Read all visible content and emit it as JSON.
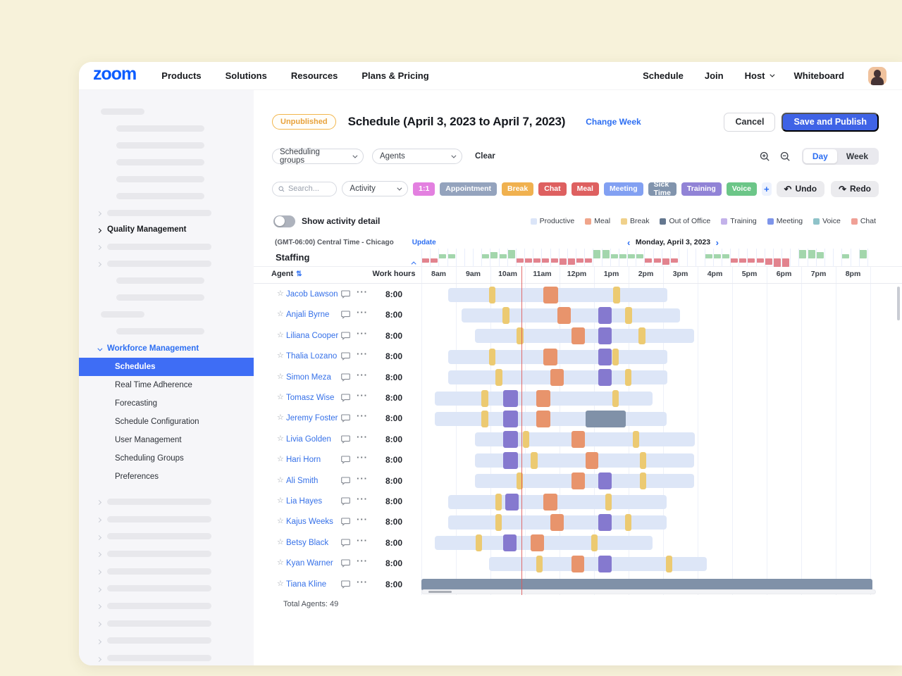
{
  "nav": {
    "logo": "zoom",
    "items": [
      "Products",
      "Solutions",
      "Resources",
      "Plans & Pricing"
    ],
    "right_items": [
      "Schedule",
      "Join",
      "Host",
      "Whiteboard"
    ]
  },
  "sidebar": {
    "quality_label": "Quality Management",
    "workforce_label": "Workforce Management",
    "items": [
      "Schedules",
      "Real Time Adherence",
      "Forecasting",
      "Schedule Configuration",
      "User Management",
      "Scheduling Groups",
      "Preferences"
    ],
    "selected": "Schedules",
    "top_skeleton": [
      "short",
      "ind",
      "ind",
      "ind",
      "ind",
      "ind",
      "chevbar",
      "quality",
      "chevbar",
      "chevbar",
      "ind",
      "ind",
      "short",
      "ind"
    ],
    "bottom_skeleton_count": 10
  },
  "header": {
    "badge": "Unpublished",
    "title": "Schedule (April 3, 2023 to April 7, 2023)",
    "change_week": "Change Week",
    "cancel": "Cancel",
    "save": "Save and Publish"
  },
  "filters": {
    "group_select": "Scheduling groups",
    "agent_select": "Agents",
    "clear": "Clear",
    "day": "Day",
    "week": "Week"
  },
  "activity": {
    "search_placeholder": "Search...",
    "select": "Activity",
    "chips": [
      {
        "label": "1:1",
        "color": "#e380e0"
      },
      {
        "label": "Appointment",
        "color": "#94a3bd"
      },
      {
        "label": "Break",
        "color": "#f0b14f"
      },
      {
        "label": "Chat",
        "color": "#de6060"
      },
      {
        "label": "Meal",
        "color": "#de6060"
      },
      {
        "label": "Meeting",
        "color": "#82a0f2"
      },
      {
        "label": "Sick Time",
        "color": "#8194ad"
      },
      {
        "label": "Training",
        "color": "#9183d6"
      },
      {
        "label": "Voice",
        "color": "#6cc688"
      }
    ],
    "plus": "+",
    "undo": "Undo",
    "redo": "Redo"
  },
  "toggle_label": "Show activity detail",
  "legend": [
    {
      "label": "Productive",
      "color": "#dbe5f8"
    },
    {
      "label": "Meal",
      "color": "#f0a58b"
    },
    {
      "label": "Break",
      "color": "#f0d18b"
    },
    {
      "label": "Out of Office",
      "color": "#64778f"
    },
    {
      "label": "Training",
      "color": "#c3b2ea"
    },
    {
      "label": "Meeting",
      "color": "#7e95ea"
    },
    {
      "label": "Voice",
      "color": "#8fc3c9"
    },
    {
      "label": "Chat",
      "color": "#f0a096"
    }
  ],
  "timebar": {
    "timezone": "(GMT-06:00) Central Time - Chicago",
    "update": "Update",
    "date": "Monday, April 3, 2023"
  },
  "staffing_label": "Staffing",
  "table": {
    "agent_header": "Agent",
    "work_hours_header": "Work hours",
    "hours": [
      "8am",
      "9am",
      "10am",
      "11am",
      "12pm",
      "1pm",
      "2pm",
      "3pm",
      "4pm",
      "5pm",
      "6pm",
      "7pm",
      "8pm"
    ],
    "total_agents_label": "Total Agents: 49"
  },
  "agents": [
    {
      "name": "Jacob Lawson",
      "work": "8:00",
      "start": 0.78,
      "end": 7.12,
      "segs": [
        [
          1.95,
          0.2,
          "break"
        ],
        [
          3.53,
          0.43,
          "meal"
        ],
        [
          5.55,
          0.2,
          "break"
        ]
      ]
    },
    {
      "name": "Anjali Byrne",
      "work": "8:00",
      "start": 1.16,
      "end": 7.49,
      "segs": [
        [
          2.35,
          0.2,
          "break"
        ],
        [
          3.94,
          0.39,
          "meal"
        ],
        [
          5.12,
          0.39,
          "meeting"
        ],
        [
          5.9,
          0.2,
          "break"
        ]
      ]
    },
    {
      "name": "Liliana Cooper",
      "work": "8:00",
      "start": 1.55,
      "end": 7.9,
      "segs": [
        [
          2.76,
          0.2,
          "break"
        ],
        [
          4.35,
          0.39,
          "meal"
        ],
        [
          5.12,
          0.39,
          "meeting"
        ],
        [
          6.29,
          0.2,
          "break"
        ]
      ]
    },
    {
      "name": "Thalia Lozano",
      "work": "8:00",
      "start": 0.78,
      "end": 7.12,
      "segs": [
        [
          1.95,
          0.2,
          "break"
        ],
        [
          3.53,
          0.41,
          "meal"
        ],
        [
          5.12,
          0.39,
          "meeting"
        ],
        [
          5.53,
          0.18,
          "break"
        ]
      ]
    },
    {
      "name": "Simon Meza",
      "work": "8:00",
      "start": 0.78,
      "end": 7.12,
      "segs": [
        [
          2.14,
          0.2,
          "break"
        ],
        [
          3.73,
          0.39,
          "meal"
        ],
        [
          5.12,
          0.39,
          "meeting"
        ],
        [
          5.9,
          0.18,
          "break"
        ]
      ]
    },
    {
      "name": "Tomasz Wise",
      "work": "8:00",
      "start": 0.39,
      "end": 6.69,
      "segs": [
        [
          1.73,
          0.2,
          "break"
        ],
        [
          2.37,
          0.43,
          "meeting"
        ],
        [
          3.33,
          0.41,
          "meal"
        ],
        [
          5.53,
          0.18,
          "break"
        ]
      ]
    },
    {
      "name": "Jeremy Foster",
      "work": "8:00",
      "start": 0.39,
      "end": 7.1,
      "segs": [
        [
          1.73,
          0.2,
          "break"
        ],
        [
          2.37,
          0.43,
          "meeting"
        ],
        [
          3.33,
          0.41,
          "meal"
        ],
        [
          4.76,
          1.16,
          "ooo"
        ]
      ]
    },
    {
      "name": "Livia Golden",
      "work": "8:00",
      "start": 1.55,
      "end": 7.92,
      "segs": [
        [
          2.37,
          0.43,
          "meeting"
        ],
        [
          2.94,
          0.18,
          "break"
        ],
        [
          4.35,
          0.39,
          "meal"
        ],
        [
          6.12,
          0.18,
          "break"
        ]
      ]
    },
    {
      "name": "Hari Horn",
      "work": "8:00",
      "start": 1.55,
      "end": 7.9,
      "segs": [
        [
          2.37,
          0.43,
          "meeting"
        ],
        [
          3.16,
          0.2,
          "break"
        ],
        [
          4.76,
          0.37,
          "meal"
        ],
        [
          6.33,
          0.18,
          "break"
        ]
      ]
    },
    {
      "name": "Ali Smith",
      "work": "8:00",
      "start": 1.55,
      "end": 7.9,
      "segs": [
        [
          2.76,
          0.18,
          "break"
        ],
        [
          4.35,
          0.39,
          "meal"
        ],
        [
          5.12,
          0.39,
          "meeting"
        ],
        [
          6.33,
          0.18,
          "break"
        ]
      ]
    },
    {
      "name": "Lia Hayes",
      "work": "8:00",
      "start": 0.78,
      "end": 7.1,
      "segs": [
        [
          2.14,
          0.18,
          "break"
        ],
        [
          2.43,
          0.39,
          "meeting"
        ],
        [
          3.53,
          0.41,
          "meal"
        ],
        [
          5.33,
          0.18,
          "break"
        ]
      ]
    },
    {
      "name": "Kajus Weeks",
      "work": "8:00",
      "start": 0.78,
      "end": 7.1,
      "segs": [
        [
          2.14,
          0.18,
          "break"
        ],
        [
          3.73,
          0.39,
          "meal"
        ],
        [
          5.12,
          0.39,
          "meeting"
        ],
        [
          5.9,
          0.18,
          "break"
        ]
      ]
    },
    {
      "name": "Betsy Black",
      "work": "8:00",
      "start": 0.39,
      "end": 6.69,
      "segs": [
        [
          1.57,
          0.18,
          "break"
        ],
        [
          2.37,
          0.39,
          "meeting"
        ],
        [
          3.16,
          0.39,
          "meal"
        ],
        [
          4.92,
          0.18,
          "break"
        ]
      ]
    },
    {
      "name": "Kyan Warner",
      "work": "8:00",
      "start": 1.96,
      "end": 8.27,
      "segs": [
        [
          3.33,
          0.18,
          "break"
        ],
        [
          4.35,
          0.37,
          "meal"
        ],
        [
          5.12,
          0.39,
          "meeting"
        ],
        [
          7.08,
          0.18,
          "break"
        ]
      ]
    },
    {
      "name": "Tiana Kline",
      "work": "8:00",
      "start": 0,
      "end": 13.06,
      "full": "ooo",
      "segs": []
    }
  ],
  "seg_colors": {
    "base": "#dde6f7",
    "break": "#ecca72",
    "meal": "#e8946c",
    "meeting": "#8579cf",
    "ooo": "#8091a8"
  },
  "chart_data": {
    "type": "bar",
    "title": "Staffing net coverage, Monday, April 3, 2023 (15-minute slots from 8am; positive = overstaffed green, negative = understaffed red)",
    "slot_minutes": 15,
    "start_hour_label": "8am",
    "values": [
      -1,
      -1,
      1,
      1,
      0,
      0,
      0,
      1,
      2,
      1,
      3,
      -1,
      -1,
      -1,
      -1,
      -1,
      -2,
      -2,
      -1,
      -1,
      3,
      3,
      1,
      1,
      1,
      1,
      -1,
      -1,
      -2,
      -1,
      0,
      0,
      0,
      1,
      1,
      1,
      -1,
      -1,
      -1,
      -1,
      -2,
      -3,
      -3,
      0,
      3,
      3,
      2,
      0,
      0,
      1,
      0,
      3,
      0
    ],
    "positive_color": "#a3d6ac",
    "negative_color": "#e2838e"
  },
  "colors": {
    "zoom_blue": "#0b5cff",
    "accent_blue": "#2c6ef2",
    "selected_blue": "#3e6df5",
    "save_blue": "#3f63e6",
    "badge_orange": "#e8a23c",
    "red_timeline": "#de5454"
  }
}
